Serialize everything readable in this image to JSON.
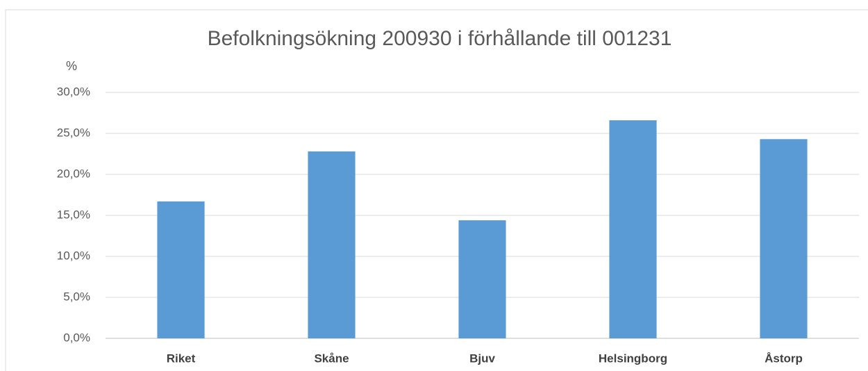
{
  "chart_data": {
    "type": "bar",
    "title": "Befolkningsökning 200930 i förhållande till 001231",
    "y_label": "%",
    "categories": [
      "Riket",
      "Skåne",
      "Bjuv",
      "Helsingborg",
      "Åstorp"
    ],
    "values": [
      16.7,
      22.8,
      14.4,
      26.6,
      24.3
    ],
    "color": "#5b9bd5",
    "ylim": [
      0,
      30
    ],
    "yticks": [
      {
        "value": 0,
        "label": "0,0%"
      },
      {
        "value": 5,
        "label": "5,0%"
      },
      {
        "value": 10,
        "label": "10,0%"
      },
      {
        "value": 15,
        "label": "15,0%"
      },
      {
        "value": 20,
        "label": "20,0%"
      },
      {
        "value": 25,
        "label": "25,0%"
      },
      {
        "value": 30,
        "label": "30,0%"
      }
    ],
    "grid": true
  }
}
